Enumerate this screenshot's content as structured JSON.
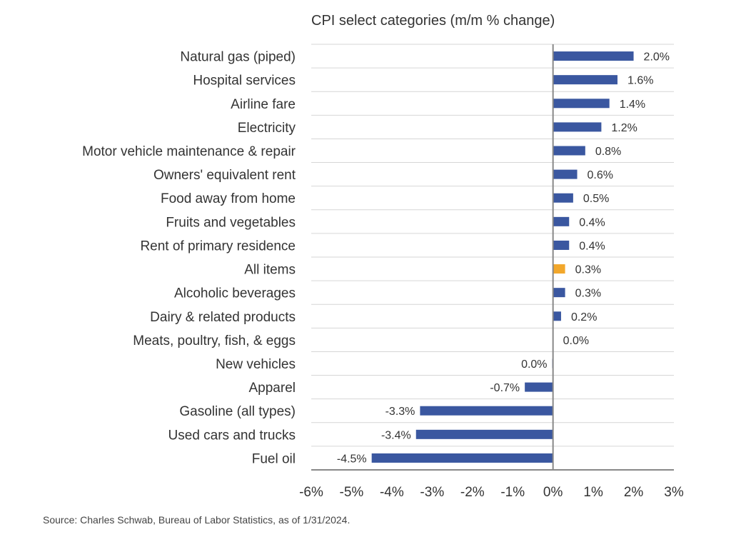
{
  "chart_data": {
    "type": "bar",
    "orientation": "horizontal",
    "title": "CPI select categories (m/m % change)",
    "categories": [
      "Natural gas (piped)",
      "Hospital services",
      "Airline fare",
      "Electricity",
      "Motor vehicle maintenance & repair",
      "Owners' equivalent rent",
      "Food away from home",
      "Fruits and vegetables",
      "Rent of primary residence",
      "All items",
      "Alcoholic beverages",
      "Dairy & related products",
      "Meats, poultry, fish, & eggs",
      "New vehicles",
      "Apparel",
      "Gasoline (all types)",
      "Used cars and trucks",
      "Fuel oil"
    ],
    "values": [
      2.0,
      1.6,
      1.4,
      1.2,
      0.8,
      0.6,
      0.5,
      0.4,
      0.4,
      0.3,
      0.3,
      0.2,
      0.0,
      -0.02,
      -0.7,
      -3.3,
      -3.4,
      -4.5
    ],
    "value_labels": [
      "2.0%",
      "1.6%",
      "1.4%",
      "1.2%",
      "0.8%",
      "0.6%",
      "0.5%",
      "0.4%",
      "0.4%",
      "0.3%",
      "0.3%",
      "0.2%",
      "0.0%",
      "0.0%",
      "-0.7%",
      "-3.3%",
      "-3.4%",
      "-4.5%"
    ],
    "highlight_category": "All items",
    "xlim": [
      -6,
      3
    ],
    "x_ticks": [
      -6,
      -5,
      -4,
      -3,
      -2,
      -1,
      0,
      1,
      2,
      3
    ],
    "x_tick_labels": [
      "-6%",
      "-5%",
      "-4%",
      "-3%",
      "-2%",
      "-1%",
      "0%",
      "1%",
      "2%",
      "3%"
    ],
    "grid": true,
    "colors": {
      "bar": "#3a57a0",
      "highlight": "#f2a72b",
      "grid": "#d6d6d6",
      "axis": "#888888"
    }
  },
  "source": "Source: Charles Schwab, Bureau of Labor Statistics, as of 1/31/2024."
}
